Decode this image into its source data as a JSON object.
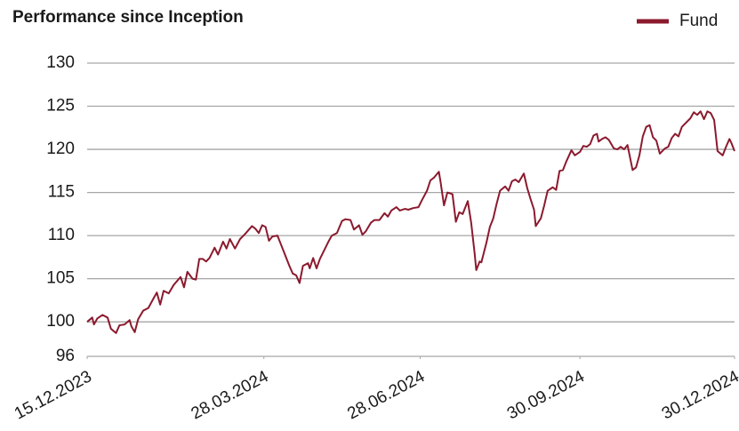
{
  "chart_data": {
    "type": "line",
    "title": "Performance since Inception",
    "x": [
      "15.12.2023",
      "18.12.2023",
      "19.12.2023",
      "21.12.2023",
      "24.12.2023",
      "27.12.2023",
      "29.12.2023",
      "01.01.2024",
      "03.01.2024",
      "06.01.2024",
      "09.01.2024",
      "10.01.2024",
      "12.01.2024",
      "14.01.2024",
      "17.01.2024",
      "20.01.2024",
      "23.01.2024",
      "25.01.2024",
      "27.01.2024",
      "29.01.2024",
      "01.02.2024",
      "04.02.2024",
      "08.02.2024",
      "10.02.2024",
      "12.02.2024",
      "15.02.2024",
      "17.02.2024",
      "19.02.2024",
      "21.02.2024",
      "23.02.2024",
      "25.02.2024",
      "28.02.2024",
      "01.03.2024",
      "04.03.2024",
      "06.03.2024",
      "08.03.2024",
      "11.03.2024",
      "14.03.2024",
      "17.03.2024",
      "21.03.2024",
      "23.03.2024",
      "25.03.2024",
      "27.03.2024",
      "29.03.2024",
      "31.03.2024",
      "02.04.2024",
      "05.04.2024",
      "07.04.2024",
      "09.04.2024",
      "12.04.2024",
      "14.04.2024",
      "16.04.2024",
      "18.04.2024",
      "20.04.2024",
      "23.04.2024",
      "24.04.2024",
      "26.04.2024",
      "28.04.2024",
      "30.04.2024",
      "03.05.2024",
      "05.05.2024",
      "07.05.2024",
      "10.05.2024",
      "13.05.2024",
      "15.05.2024",
      "18.05.2024",
      "20.05.2024",
      "23.05.2024",
      "25.05.2024",
      "27.05.2024",
      "30.05.2024",
      "01.06.2024",
      "04.06.2024",
      "07.06.2024",
      "09.06.2024",
      "11.06.2024",
      "14.06.2024",
      "16.06.2024",
      "19.06.2024",
      "21.06.2024",
      "24.06.2024",
      "27.06.2024",
      "29.06.2024",
      "02.07.2024",
      "04.07.2024",
      "06.07.2024",
      "09.07.2024",
      "10.07.2024",
      "12.07.2024",
      "14.07.2024",
      "17.07.2024",
      "19.07.2024",
      "21.07.2024",
      "23.07.2024",
      "26.07.2024",
      "28.07.2024",
      "30.07.2024",
      "31.07.2024",
      "02.08.2024",
      "03.08.2024",
      "06.08.2024",
      "08.08.2024",
      "10.08.2024",
      "12.08.2024",
      "14.08.2024",
      "17.08.2024",
      "19.08.2024",
      "21.08.2024",
      "23.08.2024",
      "25.08.2024",
      "28.08.2024",
      "30.08.2024",
      "01.09.2024",
      "03.09.2024",
      "04.09.2024",
      "07.09.2024",
      "09.09.2024",
      "11.09.2024",
      "14.09.2024",
      "16.09.2024",
      "18.09.2024",
      "20.09.2024",
      "22.09.2024",
      "25.09.2024",
      "27.09.2024",
      "30.09.2024",
      "02.10.2024",
      "04.10.2024",
      "06.10.2024",
      "08.10.2024",
      "10.10.2024",
      "11.10.2024",
      "13.10.2024",
      "15.10.2024",
      "17.10.2024",
      "20.10.2024",
      "22.10.2024",
      "24.10.2024",
      "26.10.2024",
      "28.10.2024",
      "31.10.2024",
      "02.11.2024",
      "04.11.2024",
      "06.11.2024",
      "08.11.2024",
      "10.11.2024",
      "12.11.2024",
      "14.11.2024",
      "16.11.2024",
      "19.11.2024",
      "21.11.2024",
      "23.11.2024",
      "25.11.2024",
      "27.11.2024",
      "29.11.2024",
      "02.12.2024",
      "04.12.2024",
      "06.12.2024",
      "08.12.2024",
      "10.12.2024",
      "12.12.2024",
      "14.12.2024",
      "16.12.2024",
      "18.12.2024",
      "20.12.2024",
      "23.12.2024",
      "25.12.2024",
      "27.12.2024",
      "28.12.2024",
      "30.12.2024"
    ],
    "series": [
      {
        "name": "Fund",
        "color": "#8b1a2e",
        "values": [
          100,
          100.5,
          99.7,
          100.4,
          100.8,
          100.5,
          99.2,
          98.7,
          99.6,
          99.7,
          100.2,
          99.5,
          98.8,
          100.3,
          101.3,
          101.6,
          102.7,
          103.4,
          102.0,
          103.6,
          103.3,
          104.3,
          105.2,
          104.0,
          105.8,
          105.0,
          104.9,
          107.3,
          107.3,
          107.0,
          107.4,
          108.6,
          107.8,
          109.3,
          108.5,
          109.6,
          108.5,
          109.6,
          110.2,
          111.1,
          110.8,
          110.3,
          111.2,
          111.0,
          109.4,
          109.9,
          110.0,
          109.0,
          108.0,
          106.5,
          105.6,
          105.4,
          104.5,
          106.5,
          106.8,
          106.2,
          107.4,
          106.2,
          107.3,
          108.5,
          109.3,
          110.0,
          110.3,
          111.7,
          111.9,
          111.8,
          110.7,
          111.2,
          110.1,
          110.5,
          111.5,
          111.8,
          111.8,
          112.6,
          112.2,
          112.9,
          113.3,
          112.9,
          113.1,
          113.0,
          113.2,
          113.3,
          114.1,
          115.2,
          116.4,
          116.7,
          117.4,
          116.2,
          113.5,
          115.0,
          114.8,
          111.6,
          112.7,
          112.5,
          114.0,
          111.5,
          108.0,
          106.0,
          107.0,
          106.9,
          109.2,
          111.0,
          112.0,
          113.7,
          115.2,
          115.7,
          115.2,
          116.3,
          116.5,
          116.2,
          117.2,
          115.5,
          114.2,
          113.0,
          111.1,
          112.0,
          113.5,
          115.2,
          115.6,
          115.3,
          117.5,
          117.6,
          118.6,
          119.9,
          119.3,
          119.7,
          120.4,
          120.3,
          120.6,
          121.6,
          121.8,
          120.9,
          121.2,
          121.4,
          121.1,
          120.1,
          120.0,
          120.3,
          120.0,
          120.5,
          117.6,
          117.9,
          119.3,
          121.5,
          122.6,
          122.8,
          121.4,
          121.0,
          119.5,
          120.1,
          120.3,
          121.3,
          121.8,
          121.5,
          122.6,
          123.2,
          123.6,
          124.3,
          124.0,
          124.4,
          123.5,
          124.4,
          124.2,
          123.4,
          119.8,
          119.3,
          120.3,
          121.2,
          120.8,
          119.8
        ]
      }
    ],
    "xlim": [
      "15.12.2023",
      "30.12.2024"
    ],
    "xticks": [
      "15.12.2023",
      "28.03.2024",
      "28.06.2024",
      "30.09.2024",
      "30.12.2024"
    ],
    "ylim": [
      96,
      130
    ],
    "yticks": [
      96,
      100,
      105,
      110,
      115,
      120,
      125,
      130
    ],
    "grid": true,
    "legend": "top-right"
  }
}
